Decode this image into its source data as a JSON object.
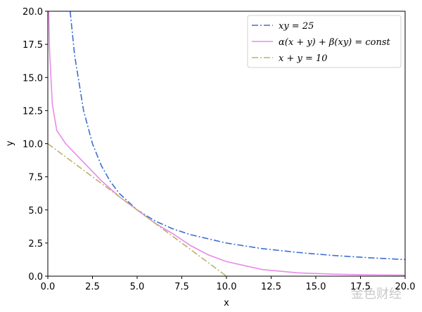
{
  "chart_data": {
    "type": "line",
    "x_label": "x",
    "y_label": "y",
    "xlim": [
      0,
      20
    ],
    "ylim": [
      0,
      20
    ],
    "xticks": [
      {
        "value": 0,
        "label": "0.0"
      },
      {
        "value": 2.5,
        "label": "2.5"
      },
      {
        "value": 5,
        "label": "5.0"
      },
      {
        "value": 7.5,
        "label": "7.5"
      },
      {
        "value": 10,
        "label": "10.0"
      },
      {
        "value": 12.5,
        "label": "12.5"
      },
      {
        "value": 15,
        "label": "15.0"
      },
      {
        "value": 17.5,
        "label": "17.5"
      },
      {
        "value": 20,
        "label": "20.0"
      }
    ],
    "yticks": [
      {
        "value": 0,
        "label": "0.0"
      },
      {
        "value": 2.5,
        "label": "2.5"
      },
      {
        "value": 5,
        "label": "5.0"
      },
      {
        "value": 7.5,
        "label": "7.5"
      },
      {
        "value": 10,
        "label": "10.0"
      },
      {
        "value": 12.5,
        "label": "12.5"
      },
      {
        "value": 15,
        "label": "15.0"
      },
      {
        "value": 17.5,
        "label": "17.5"
      },
      {
        "value": 20,
        "label": "20.0"
      }
    ],
    "legend": "upper right",
    "watermark": "金色财经",
    "series": [
      {
        "name": "xy = 25",
        "color": "#3b6fd0",
        "linestyle": "dashdot",
        "x": [
          1.25,
          1.5,
          2,
          2.5,
          3,
          3.5,
          4,
          5,
          6,
          7,
          8,
          10,
          12,
          14,
          16,
          18,
          20
        ],
        "values": [
          20,
          16.67,
          12.5,
          10,
          8.33,
          7.14,
          6.25,
          5,
          4.17,
          3.57,
          3.13,
          2.5,
          2.08,
          1.79,
          1.56,
          1.39,
          1.25
        ]
      },
      {
        "name": "α(x + y) + β(xy) = const",
        "color": "#e88be8",
        "linestyle": "solid",
        "x": [
          0.05,
          0.1,
          0.25,
          0.5,
          1,
          2,
          3,
          4,
          5,
          6,
          7,
          8,
          9,
          10,
          11,
          12,
          14,
          16,
          18,
          20
        ],
        "values": [
          20,
          17,
          13,
          11,
          10,
          8.6,
          7.2,
          6,
          5,
          4,
          3.2,
          2.3,
          1.6,
          1.1,
          0.8,
          0.5,
          0.25,
          0.15,
          0.1,
          0.08
        ]
      },
      {
        "name": "x + y = 10",
        "color": "#bdb06a",
        "linestyle": "dashdot",
        "x": [
          0,
          10
        ],
        "values": [
          10,
          0
        ]
      }
    ]
  }
}
